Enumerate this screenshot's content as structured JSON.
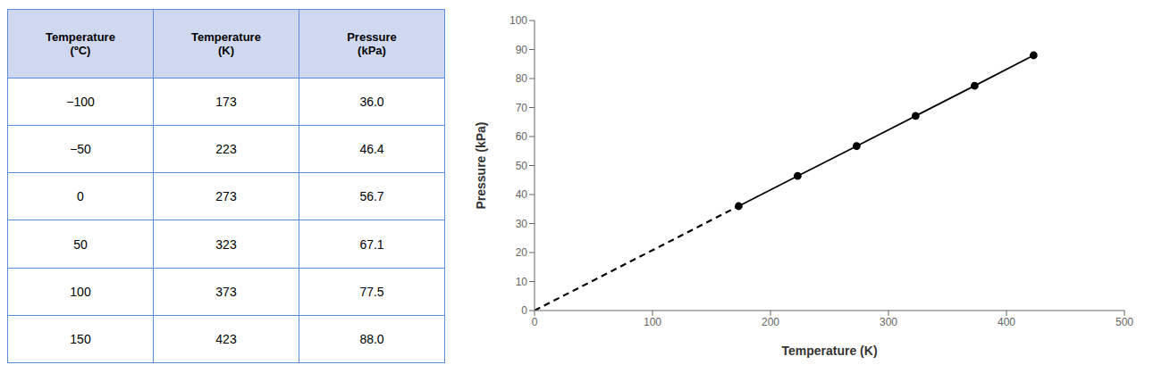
{
  "chart_data": [
    {
      "type": "table",
      "series": [
        {
          "name": "Temperature\n(ºC)",
          "values": [
            -100,
            -50,
            0,
            50,
            100,
            150
          ],
          "value_labels": [
            "−100",
            "−50",
            "0",
            "50",
            "100",
            "150"
          ]
        },
        {
          "name": "Temperature\n(K)",
          "values": [
            173,
            223,
            273,
            323,
            373,
            423
          ]
        },
        {
          "name": "Pressure\n(kPa)",
          "values": [
            36.0,
            46.4,
            56.7,
            67.1,
            77.5,
            88.0
          ],
          "value_labels": [
            "36.0",
            "46.4",
            "56.7",
            "67.1",
            "77.5",
            "88.0"
          ]
        }
      ]
    },
    {
      "type": "line",
      "x_label": "Temperature (K)",
      "y_label": "Pressure (kPa)",
      "series": [
        {
          "x": [
            0,
            173
          ],
          "values": [
            0,
            36.0
          ],
          "color": "black",
          "line_style": "dashed"
        },
        {
          "x": [
            173,
            223,
            273,
            323,
            373,
            423
          ],
          "values": [
            36.0,
            46.4,
            56.7,
            67.1,
            77.5,
            88.0
          ],
          "color": "black",
          "line_style": "solid",
          "marker": "circle"
        }
      ],
      "xlim": [
        0,
        500
      ],
      "ylim": [
        0,
        100
      ],
      "xticks": [
        0,
        100,
        200,
        300,
        400,
        500
      ],
      "yticks": [
        0,
        10,
        20,
        30,
        40,
        50,
        60,
        70,
        80,
        90,
        100
      ],
      "grid": false
    }
  ]
}
